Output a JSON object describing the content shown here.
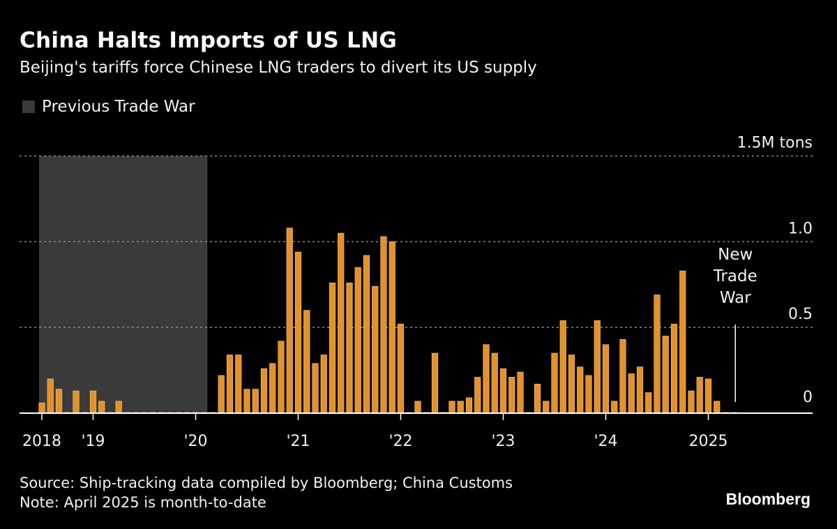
{
  "title": "China Halts Imports of US LNG",
  "subtitle": "Beijing's tariffs force Chinese LNG traders to divert its US supply",
  "legend": {
    "label": "Previous Trade War",
    "color": "#3a3a3a"
  },
  "footer": {
    "source": "Source: Ship-tracking data compiled by Bloomberg; China Customs",
    "note": "Note: April 2025 is month-to-date"
  },
  "logo": "Bloomberg",
  "chart_data": {
    "type": "bar",
    "title": "China Halts Imports of US LNG",
    "unit": "M tons",
    "ylim": [
      0,
      1.5
    ],
    "y_ticks": [
      {
        "value": 0,
        "label": "0"
      },
      {
        "value": 0.5,
        "label": "0.5"
      },
      {
        "value": 1.0,
        "label": "1.0"
      },
      {
        "value": 1.5,
        "label": "1.5M tons"
      }
    ],
    "grid": true,
    "bar_color": "#e3922b",
    "x_ticks": [
      {
        "month": "2018-07",
        "label": "2018"
      },
      {
        "month": "2019-01",
        "label": "'19"
      },
      {
        "month": "2020-01",
        "label": "'20"
      },
      {
        "month": "2021-01",
        "label": "'21"
      },
      {
        "month": "2022-01",
        "label": "'22"
      },
      {
        "month": "2023-01",
        "label": "'23"
      },
      {
        "month": "2024-01",
        "label": "'24"
      },
      {
        "month": "2025-01",
        "label": "2025"
      }
    ],
    "shaded_period": {
      "label": "Previous Trade War",
      "start": "2018-07",
      "end": "2020-02"
    },
    "annotation": {
      "month": "2025-04",
      "lines": [
        "New",
        "Trade",
        "War"
      ]
    },
    "start_month": "2018-07",
    "values": [
      0.06,
      0.2,
      0.14,
      0,
      0.13,
      0,
      0.13,
      0.07,
      0,
      0.07,
      0,
      0,
      0,
      0,
      0,
      0,
      0,
      0,
      0,
      0,
      0,
      0.22,
      0.34,
      0.34,
      0.14,
      0.14,
      0.26,
      0.29,
      0.42,
      1.08,
      0.94,
      0.6,
      0.29,
      0.34,
      0.76,
      1.05,
      0.76,
      0.85,
      0.92,
      0.74,
      1.03,
      1.0,
      0.52,
      0,
      0.07,
      0,
      0.35,
      0,
      0.07,
      0.07,
      0.09,
      0.21,
      0.4,
      0.35,
      0.26,
      0.21,
      0.24,
      0,
      0.17,
      0.07,
      0.35,
      0.54,
      0.34,
      0.27,
      0.22,
      0.54,
      0.4,
      0.07,
      0.43,
      0.23,
      0.27,
      0.12,
      0.69,
      0.45,
      0.52,
      0.83,
      0.13,
      0.21,
      0.2,
      0.07,
      0,
      0
    ]
  }
}
